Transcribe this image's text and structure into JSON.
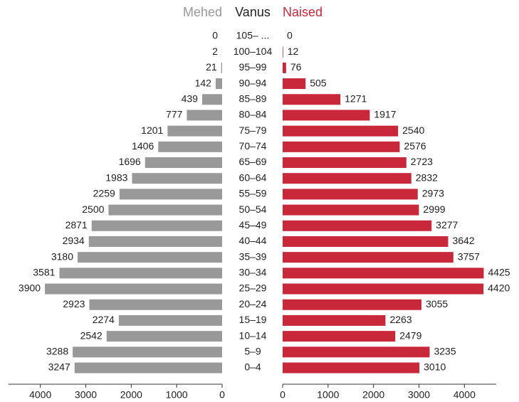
{
  "chart_data": {
    "type": "pyramid",
    "category_label": "Vanus",
    "categories": [
      "105– ...",
      "100–104",
      "95–99",
      "90–94",
      "85–89",
      "80–84",
      "75–79",
      "70–74",
      "65–69",
      "60–64",
      "55–59",
      "50–54",
      "45–49",
      "40–44",
      "35–39",
      "30–34",
      "25–29",
      "20–24",
      "15–19",
      "10–14",
      "5–9",
      "0–4"
    ],
    "series": [
      {
        "name": "Mehed",
        "color": "#999999",
        "values": [
          0,
          2,
          21,
          142,
          439,
          777,
          1201,
          1406,
          1696,
          1983,
          2259,
          2500,
          2871,
          2934,
          3180,
          3581,
          3900,
          2923,
          2274,
          2542,
          3288,
          3247
        ]
      },
      {
        "name": "Naised",
        "color": "#c8283a",
        "values": [
          0,
          12,
          76,
          505,
          1271,
          1917,
          2540,
          2576,
          2723,
          2832,
          2973,
          2999,
          3277,
          3642,
          3757,
          4425,
          4420,
          3055,
          2263,
          2479,
          3235,
          3010
        ]
      }
    ],
    "xlim": [
      0,
      4700
    ],
    "xticks": [
      0,
      1000,
      2000,
      3000,
      4000
    ]
  }
}
